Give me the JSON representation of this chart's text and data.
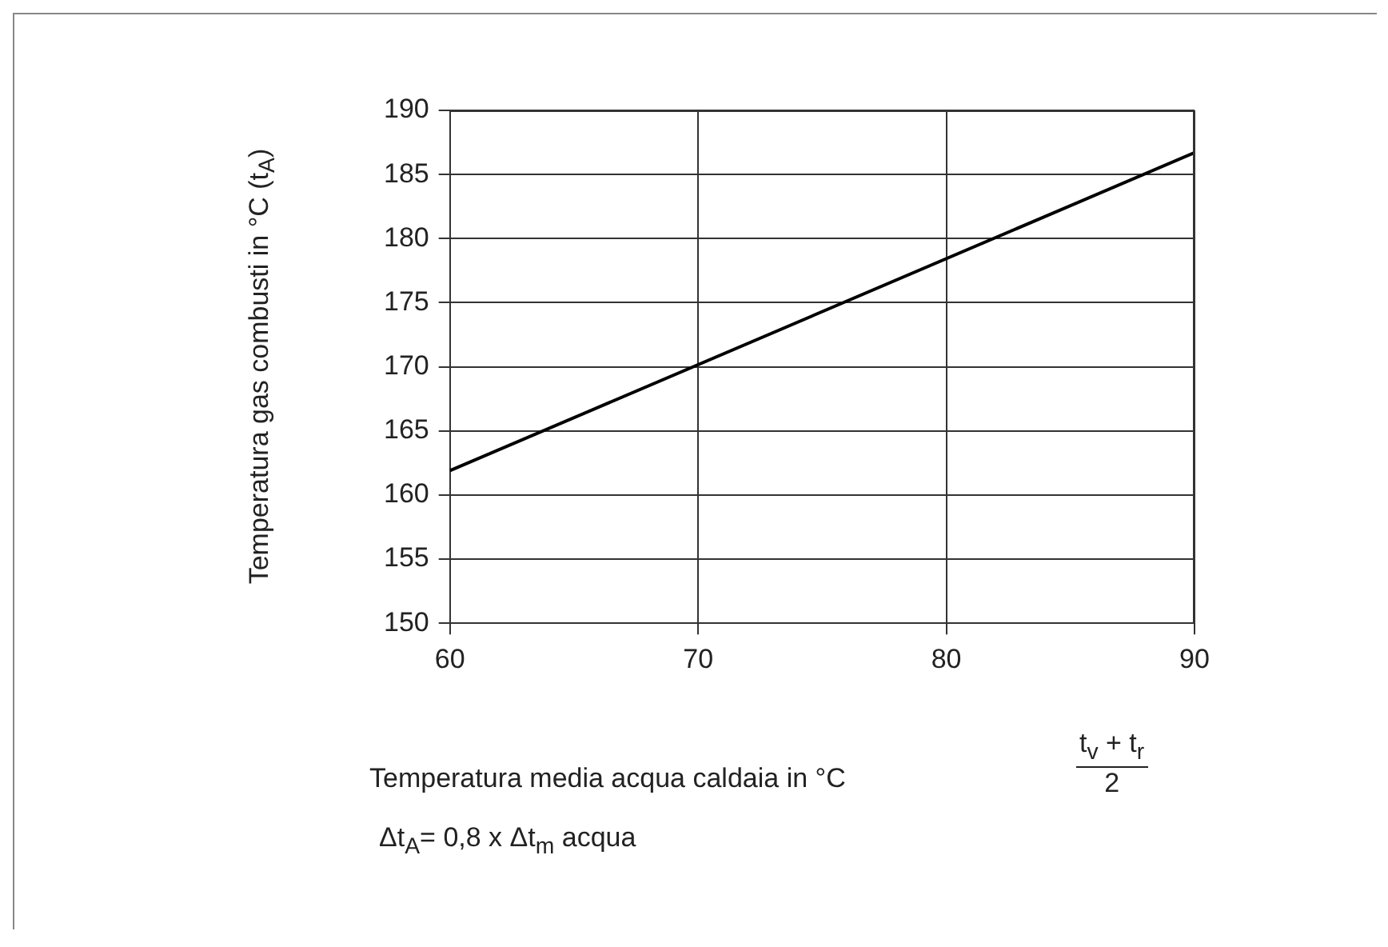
{
  "chart_data": {
    "type": "line",
    "ylabel": "Temperatura gas combusti in °C (t$_{A}$)",
    "xlabel": "Temperatura media acqua caldaia in °C",
    "x": [
      60,
      90
    ],
    "series": [
      {
        "color": "#000000",
        "values": [
          161.9,
          186.7
        ]
      }
    ],
    "xlim": [
      60,
      90
    ],
    "xticks": [
      60,
      70,
      80,
      90
    ],
    "ylim": [
      150,
      190
    ],
    "yticks": [
      150,
      155,
      160,
      165,
      170,
      175,
      180,
      185,
      190
    ],
    "grid": true,
    "legend": false,
    "marker": "none",
    "line_style": "solid",
    "annotations": [
      "t$_{v}$ + t$_{r}$",
      "2",
      "Δt$_{A}$= 0,8 x Δt$_{m}$ acqua"
    ]
  }
}
